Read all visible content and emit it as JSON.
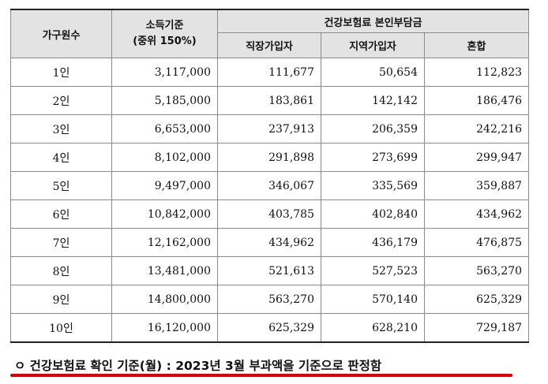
{
  "table": {
    "headers": {
      "household": "가구원수",
      "income_line1": "소득기준",
      "income_line2": "(중위 150%)",
      "premium_group": "건강보험료 본인부담금",
      "workplace": "직장가입자",
      "regional": "지역가입자",
      "mixed": "혼합"
    },
    "rows": [
      {
        "household": "1인",
        "income": "3,117,000",
        "workplace": "111,677",
        "regional": "50,654",
        "mixed": "112,823"
      },
      {
        "household": "2인",
        "income": "5,185,000",
        "workplace": "183,861",
        "regional": "142,142",
        "mixed": "186,476"
      },
      {
        "household": "3인",
        "income": "6,653,000",
        "workplace": "237,913",
        "regional": "206,359",
        "mixed": "242,216"
      },
      {
        "household": "4인",
        "income": "8,102,000",
        "workplace": "291,898",
        "regional": "273,699",
        "mixed": "299,947"
      },
      {
        "household": "5인",
        "income": "9,497,000",
        "workplace": "346,067",
        "regional": "335,569",
        "mixed": "359,887"
      },
      {
        "household": "6인",
        "income": "10,842,000",
        "workplace": "403,785",
        "regional": "402,840",
        "mixed": "434,962"
      },
      {
        "household": "7인",
        "income": "12,162,000",
        "workplace": "434,962",
        "regional": "436,179",
        "mixed": "476,875"
      },
      {
        "household": "8인",
        "income": "13,481,000",
        "workplace": "521,613",
        "regional": "527,523",
        "mixed": "563,270"
      },
      {
        "household": "9인",
        "income": "14,800,000",
        "workplace": "563,270",
        "regional": "570,140",
        "mixed": "625,329"
      },
      {
        "household": "10인",
        "income": "16,120,000",
        "workplace": "625,329",
        "regional": "628,210",
        "mixed": "729,187"
      }
    ]
  },
  "note": {
    "text": "ㅇ 건강보험료 확인 기준(월) : 2023년 3월 부과액을 기준으로 판정함",
    "underline_color": "#e10000"
  }
}
